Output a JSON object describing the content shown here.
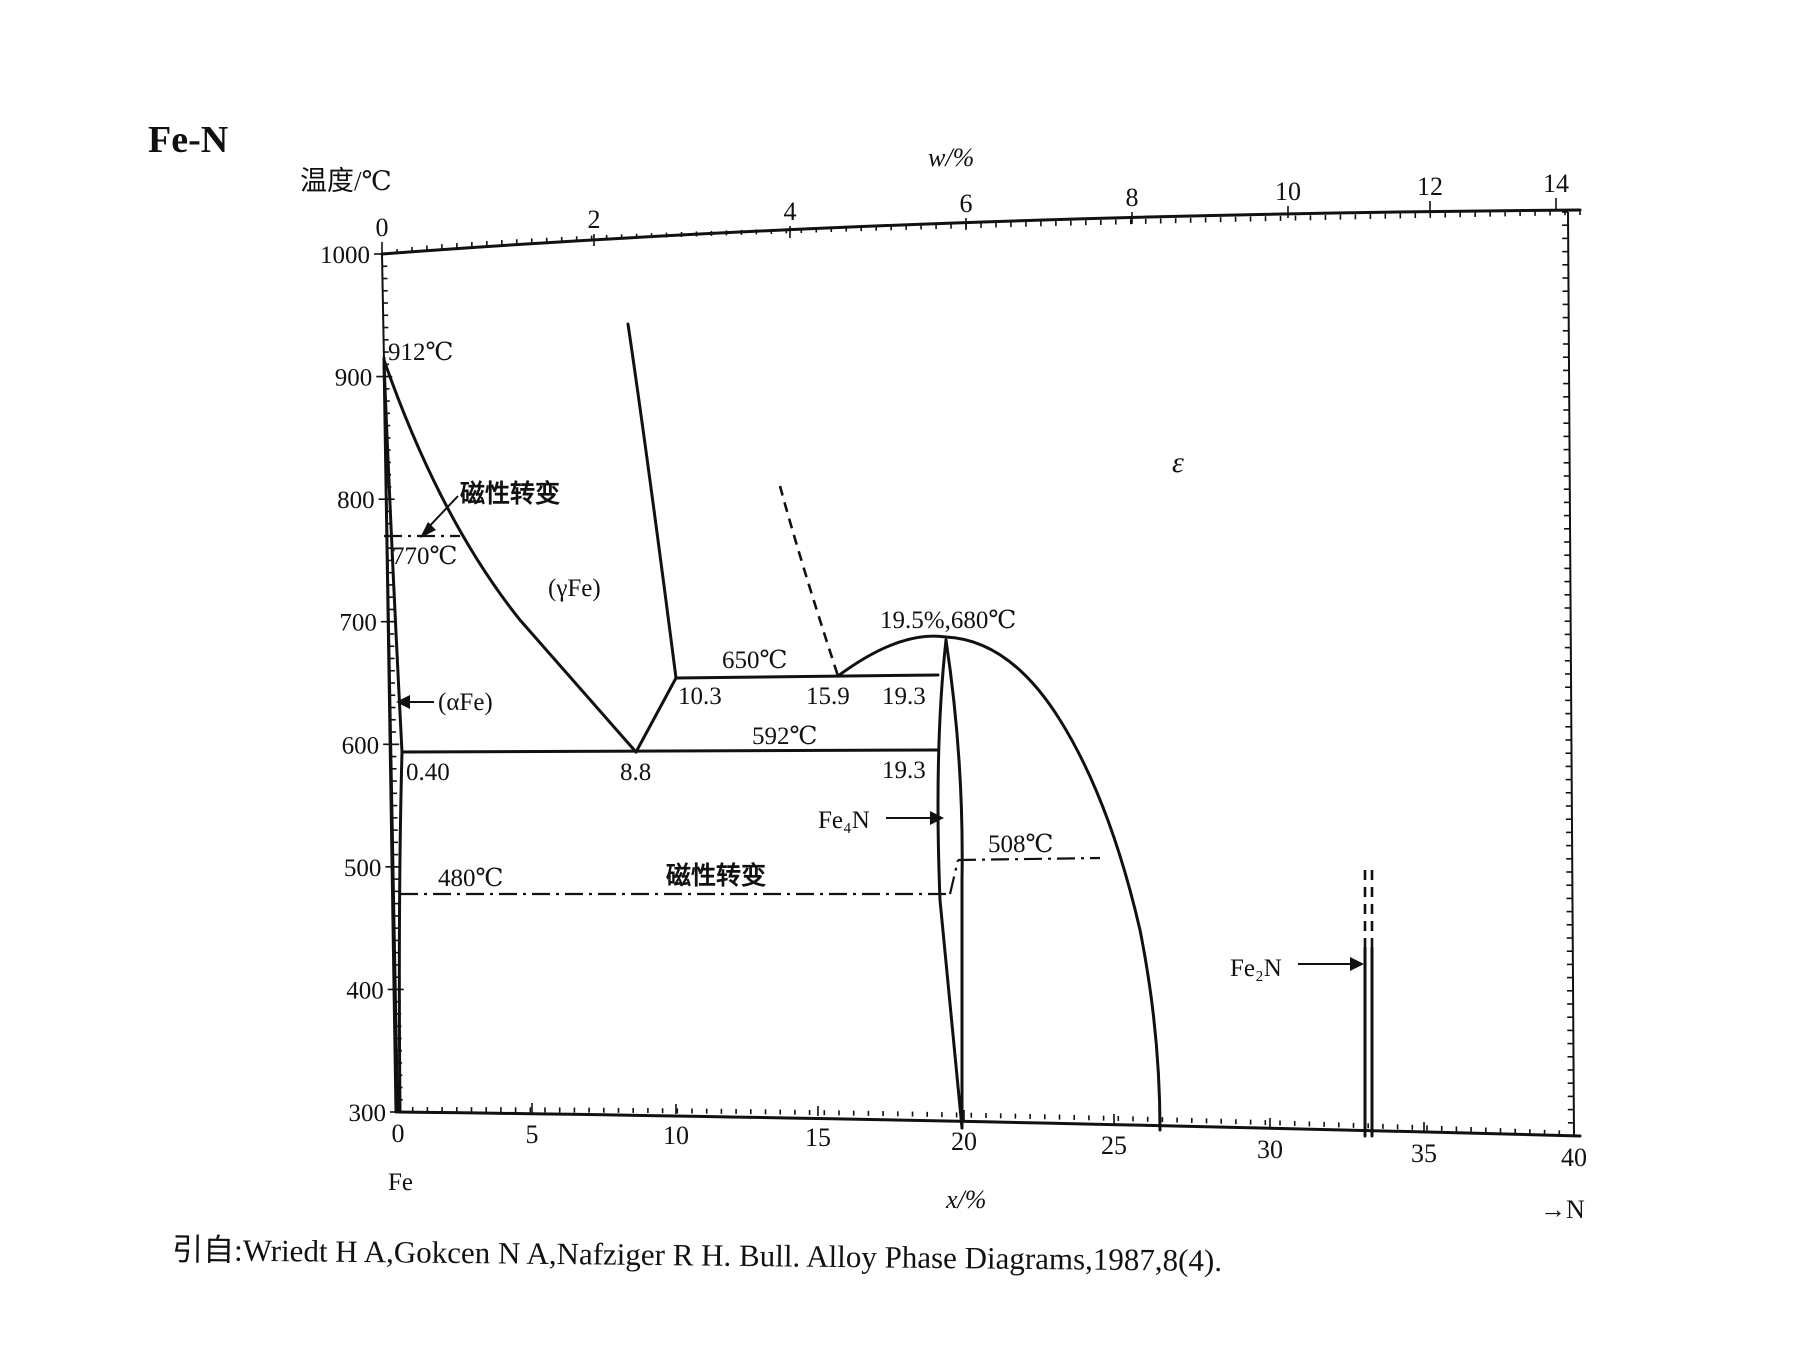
{
  "diagram": {
    "title": "Fe-N",
    "y_axis_label": "温度/℃",
    "top_axis_label": "w/%",
    "bottom_axis_label": "x/%",
    "bottom_left_label": "Fe",
    "bottom_right_label": "→N",
    "y_ticks": [
      "1000",
      "900",
      "800",
      "700",
      "600",
      "500",
      "400",
      "300"
    ],
    "bottom_ticks": [
      "0",
      "5",
      "10",
      "15",
      "20",
      "25",
      "30",
      "35",
      "40"
    ],
    "top_ticks": [
      "0",
      "2",
      "4",
      "6",
      "8",
      "10",
      "12",
      "14"
    ],
    "labels": {
      "t912": "912℃",
      "magnetic1": "磁性转变",
      "t770": "770℃",
      "gammaFe": "(γFe)",
      "alphaFe": "(αFe)",
      "t650": "650℃",
      "c103": "10.3",
      "c159": "15.9",
      "c193a": "19.3",
      "peak": "19.5%,680℃",
      "t592": "592℃",
      "c040": "0.40",
      "c88": "8.8",
      "c193b": "19.3",
      "fe4n": "Fe₄N",
      "t508": "508℃",
      "t480": "480℃",
      "magnetic2": "磁性转变",
      "epsilon": "ε",
      "fe2n": "Fe₂N"
    },
    "citation": "引自:Wriedt H A,Gokcen N A,Nafziger R H. Bull.  Alloy Phase Diagrams,1987,8(4)."
  }
}
